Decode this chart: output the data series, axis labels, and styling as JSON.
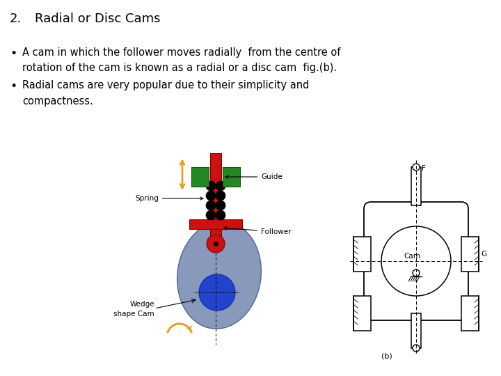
{
  "background_color": "#ffffff",
  "title_number": "2.",
  "title_text": "Radial or Disc Cams",
  "title_fontsize": 13,
  "bullet1_line1": "A cam in which the follower moves radially  from the centre of",
  "bullet1_line2": "rotation of the cam is known as a radial or a disc cam  fig.(b).",
  "bullet2_line1": "Radial cams are very popular due to their simplicity and",
  "bullet2_line2": "compactness.",
  "text_fontsize": 10.5,
  "cam_gray": "#8899bb",
  "cam_blue": "#2244cc",
  "cam_red": "#cc1111",
  "cam_green": "#228822",
  "cam_orange": "#e8a020",
  "cam_black": "#111111"
}
